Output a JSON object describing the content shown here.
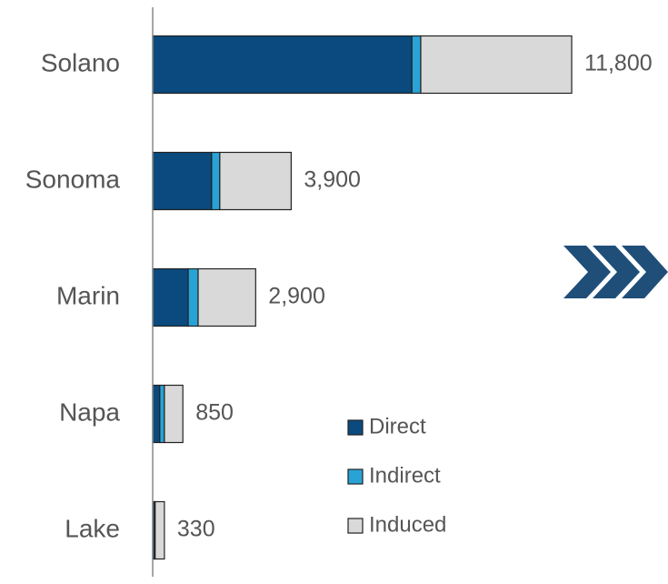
{
  "chart_data": {
    "type": "stacked-barh",
    "categories": [
      "Solano",
      "Sonoma",
      "Marin",
      "Napa",
      "Lake"
    ],
    "series": [
      {
        "name": "Direct",
        "color": "#0b4a7e",
        "values": [
          7300,
          1660,
          1000,
          200,
          50
        ]
      },
      {
        "name": "Indirect",
        "color": "#29a3d6",
        "values": [
          250,
          230,
          280,
          130,
          20
        ]
      },
      {
        "name": "Induced",
        "color": "#d9d9d9",
        "values": [
          4250,
          2010,
          1620,
          520,
          260
        ]
      }
    ],
    "totals": [
      11800,
      3900,
      2900,
      850,
      330
    ],
    "totals_labels": [
      "11,800",
      "3,900",
      "2,900",
      "850",
      "330"
    ],
    "xlim": [
      0,
      14000
    ]
  }
}
